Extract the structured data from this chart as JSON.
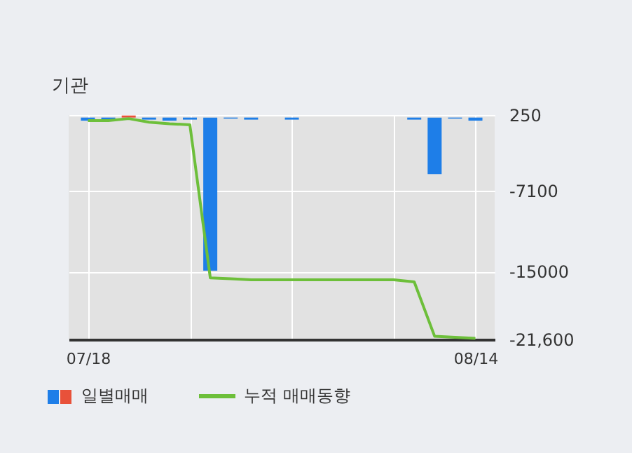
{
  "chart_data": {
    "type": "bar",
    "title": "기관",
    "categories": [
      "07/18",
      null,
      null,
      null,
      null,
      null,
      null,
      null,
      null,
      null,
      null,
      null,
      null,
      null,
      null,
      null,
      null,
      null,
      null,
      "08/14"
    ],
    "series": [
      {
        "name": "일별매매",
        "colors": [
          "#1e7ee8",
          "#1e7ee8",
          "#e8513a",
          "#1e7ee8",
          "#1e7ee8",
          "#1e7ee8",
          "#1e7ee8",
          "#1e7ee8",
          "#1e7ee8",
          "#1e7ee8",
          "#1e7ee8",
          "#1e7ee8",
          "#1e7ee8",
          "#1e7ee8",
          "#1e7ee8",
          "#1e7ee8",
          "#1e7ee8",
          "#1e7ee8",
          "#1e7ee8",
          "#1e7ee8"
        ],
        "values": [
          -300,
          -200,
          200,
          -200,
          -300,
          -200,
          -14900,
          -100,
          -200,
          0,
          -200,
          0,
          0,
          0,
          0,
          0,
          -200,
          -5500,
          -100,
          -300
        ]
      },
      {
        "name": "누적 매매동향",
        "type": "line",
        "color": "#6dbf3a",
        "values": [
          -300,
          -300,
          -100,
          -450,
          -600,
          -700,
          -15600,
          -15700,
          -15800,
          -15800,
          -15800,
          -15800,
          -15800,
          -15800,
          -15800,
          -15800,
          -16000,
          -21300,
          -21400,
          -21500
        ]
      }
    ],
    "ylim": [
      -21600,
      250
    ],
    "yticks": [
      250,
      -7100,
      -15000,
      {
        "value": -21600,
        "label": "-21,600"
      }
    ],
    "grid": true,
    "legend": "bottom left"
  }
}
